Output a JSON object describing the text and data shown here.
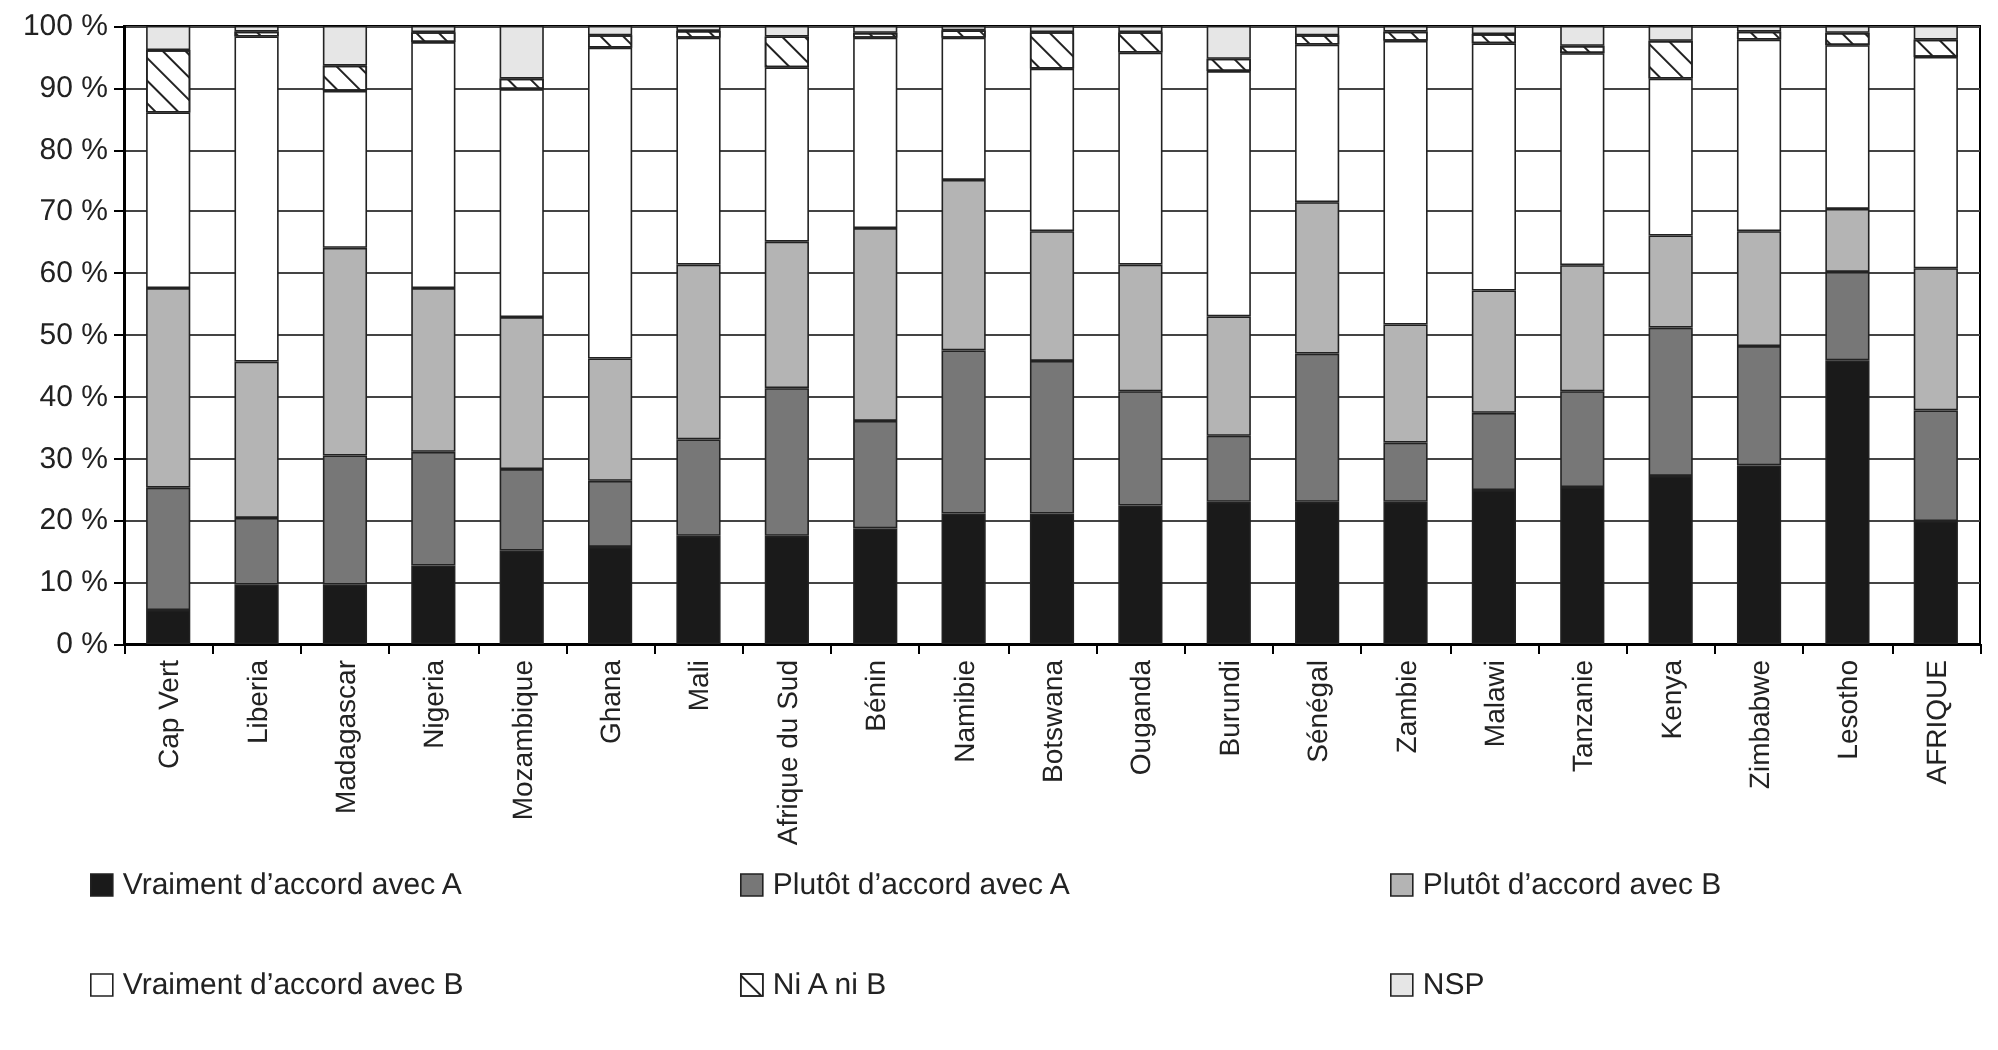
{
  "chart_data": {
    "type": "bar",
    "stacked": true,
    "grid": "y",
    "legend": "bottom",
    "categories": [
      "Cap Vert",
      "Liberia",
      "Madagascar",
      "Nigeria",
      "Mozambique",
      "Ghana",
      "Mali",
      "Afrique du Sud",
      "Bénin",
      "Namibie",
      "Botswana",
      "Ouganda",
      "Burundi",
      "Sénégal",
      "Zambie",
      "Malawi",
      "Tanzanie",
      "Kenya",
      "Zimbabwe",
      "Lesotho",
      "AFRIQUE"
    ],
    "ylim": [
      0,
      100
    ],
    "yticks": [
      {
        "value": 0,
        "label": "0 %"
      },
      {
        "value": 10,
        "label": "10 %"
      },
      {
        "value": 20,
        "label": "20 %"
      },
      {
        "value": 30,
        "label": "30 %"
      },
      {
        "value": 40,
        "label": "40 %"
      },
      {
        "value": 50,
        "label": "50 %"
      },
      {
        "value": 60,
        "label": "60 %"
      },
      {
        "value": 70,
        "label": "70 %"
      },
      {
        "value": 80,
        "label": "80 %"
      },
      {
        "value": 90,
        "label": "90 %"
      },
      {
        "value": 100,
        "label": "100 %"
      }
    ],
    "series": [
      {
        "name": "Vraiment d’accord avec A",
        "color": "#1a1a1a",
        "values": [
          5.5,
          9.6,
          9.6,
          12.7,
          15.1,
          15.7,
          17.5,
          17.5,
          18.7,
          21.1,
          21.1,
          22.4,
          23.0,
          23.0,
          23.0,
          24.9,
          25.4,
          27.2,
          28.9,
          45.9,
          19.9
        ]
      },
      {
        "name": "Plutôt d’accord avec A",
        "color": "#777777",
        "values": [
          19.8,
          10.8,
          20.9,
          18.4,
          13.2,
          10.7,
          15.6,
          23.9,
          17.4,
          26.4,
          24.7,
          18.5,
          10.7,
          24.0,
          9.6,
          12.5,
          15.5,
          24.0,
          19.3,
          14.3,
          17.9
        ]
      },
      {
        "name": "Plutôt d’accord avec B",
        "color": "#b4b4b4",
        "values": [
          32.3,
          25.3,
          33.6,
          26.5,
          24.6,
          19.8,
          28.3,
          23.7,
          31.2,
          27.6,
          21.0,
          20.5,
          19.3,
          24.5,
          19.1,
          19.8,
          20.4,
          14.9,
          18.6,
          10.2,
          23.0
        ]
      },
      {
        "name": "Vraiment d’accord avec B",
        "color": "#ffffff",
        "values": [
          28.4,
          52.6,
          25.4,
          39.8,
          36.9,
          50.3,
          36.7,
          28.2,
          30.8,
          23.0,
          26.3,
          34.3,
          39.7,
          25.5,
          45.9,
          40.0,
          34.3,
          25.4,
          31.0,
          26.5,
          34.2
        ]
      },
      {
        "name": "Ni A ni B",
        "color": "#ffffff",
        "values": [
          10.1,
          0.8,
          4.1,
          1.6,
          1.7,
          2.0,
          1.1,
          5.0,
          0.8,
          1.2,
          5.9,
          3.3,
          2.0,
          1.5,
          1.5,
          1.5,
          1.2,
          6.1,
          1.3,
          2.0,
          2.8
        ]
      },
      {
        "name": "NSP",
        "color": "#e6e6e6",
        "values": [
          3.9,
          0.9,
          6.4,
          1.0,
          8.5,
          1.5,
          0.8,
          1.7,
          1.1,
          0.7,
          1.0,
          1.0,
          5.3,
          1.5,
          0.9,
          1.3,
          3.2,
          2.4,
          0.9,
          1.1,
          2.2
        ]
      }
    ]
  }
}
